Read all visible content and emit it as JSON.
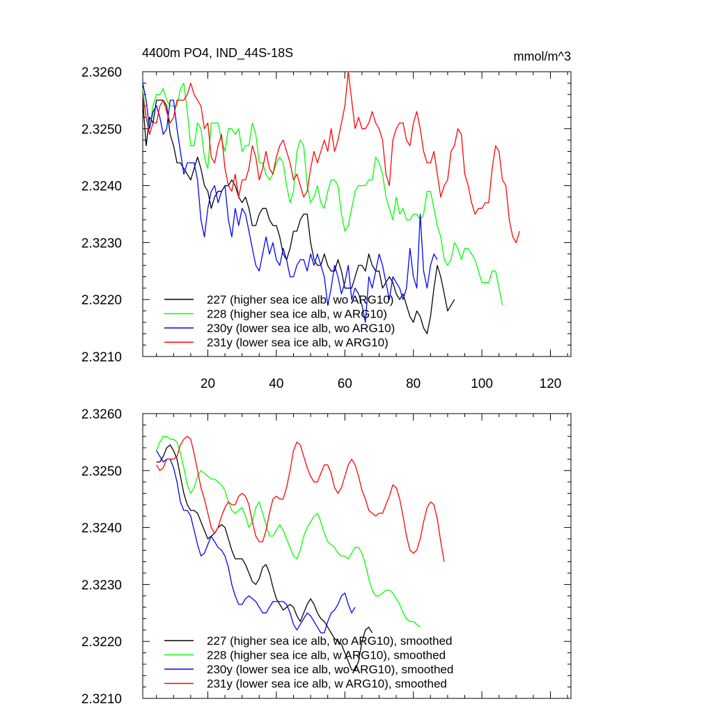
{
  "title_left": "4400m PO4, IND_44S-18S",
  "title_right": "mmol/m^3",
  "chart_data": [
    {
      "type": "line",
      "name": "raw",
      "xlim": [
        1,
        126
      ],
      "ylim": [
        2.321,
        2.326
      ],
      "x_ticks": [
        20,
        40,
        60,
        80,
        100,
        120
      ],
      "y_ticks": [
        "2.3210",
        "2.3220",
        "2.3230",
        "2.3240",
        "2.3250",
        "2.3260"
      ],
      "series": [
        {
          "name": "227 (higher sea ice alb, wo ARG10)",
          "color": "#000000",
          "x_start": 1,
          "values": [
            2.3255,
            2.3247,
            2.3252,
            2.3251,
            2.3255,
            2.3255,
            2.3255,
            2.3254,
            2.3249,
            2.3247,
            2.3244,
            2.3244,
            2.3243,
            2.3242,
            2.3241,
            2.3243,
            2.3245,
            2.3243,
            2.324,
            2.3239,
            2.3236,
            2.3238,
            2.3239,
            2.3239,
            2.324,
            2.324,
            2.3241,
            2.324,
            2.3238,
            2.3237,
            2.3238,
            2.3236,
            2.3233,
            2.3233,
            2.3235,
            2.3236,
            2.3236,
            2.3234,
            2.3233,
            2.3233,
            2.3231,
            2.3228,
            2.3227,
            2.3229,
            2.3232,
            2.3232,
            2.3234,
            2.3235,
            2.3235,
            2.323,
            2.3227,
            2.3226,
            2.3226,
            2.3228,
            2.3226,
            2.3225,
            2.3225,
            2.3227,
            2.3225,
            2.3222,
            2.3222,
            2.3222,
            2.3224,
            2.3226,
            2.3226,
            2.3225,
            2.3228,
            2.3226,
            2.3225,
            2.3225,
            2.3222,
            2.3223,
            2.3224,
            2.3223,
            2.3221,
            2.322,
            2.3221,
            2.3219,
            2.3217,
            2.3216,
            2.3218,
            2.3217,
            2.3215,
            2.3214,
            2.3217,
            2.3222,
            2.3226,
            2.3224,
            2.3221,
            2.3218,
            2.3219,
            2.322
          ]
        },
        {
          "name": "228 (higher sea ice alb, w ARG10)",
          "color": "#00ff00",
          "x_start": 1,
          "values": [
            2.3257,
            2.3252,
            2.325,
            2.3254,
            2.3256,
            2.3256,
            2.3257,
            2.3255,
            2.3254,
            2.3254,
            2.3254,
            2.3257,
            2.3258,
            2.3253,
            2.3247,
            2.3247,
            2.3251,
            2.325,
            2.3245,
            2.3243,
            2.3251,
            2.3251,
            2.3251,
            2.3248,
            2.3246,
            2.325,
            2.325,
            2.3249,
            2.325,
            2.3246,
            2.3247,
            2.3247,
            2.3251,
            2.3249,
            2.3244,
            2.3244,
            2.3242,
            2.3241,
            2.3242,
            2.3244,
            2.3245,
            2.3244,
            2.324,
            2.3237,
            2.3239,
            2.3246,
            2.3248,
            2.3247,
            2.324,
            2.3237,
            2.3238,
            2.324,
            2.3237,
            2.3236,
            2.3239,
            2.3241,
            2.3241,
            2.324,
            2.3235,
            2.3232,
            2.3233,
            2.3236,
            2.3239,
            2.324,
            2.324,
            2.324,
            2.3241,
            2.3241,
            2.3245,
            2.3244,
            2.3242,
            2.3238,
            2.3236,
            2.3234,
            2.3238,
            2.3235,
            2.3236,
            2.3234,
            2.3234,
            2.3235,
            2.3235,
            2.3234,
            2.3235,
            2.3239,
            2.3239,
            2.3236,
            2.3233,
            2.3231,
            2.3227,
            2.3226,
            2.3227,
            2.323,
            2.3229,
            2.3227,
            2.3229,
            2.3229,
            2.3228,
            2.3227,
            2.3225,
            2.3223,
            2.3223,
            2.3223,
            2.3225,
            2.3225,
            2.3222,
            2.3219
          ]
        },
        {
          "name": "230y (lower sea ice alb, wo ARG10)",
          "color": "#0000ff",
          "x_start": 1,
          "values": [
            2.3258,
            2.3255,
            2.325,
            2.3253,
            2.3254,
            2.3252,
            2.3249,
            2.325,
            2.3255,
            2.3255,
            2.325,
            2.3246,
            2.3242,
            2.3244,
            2.3244,
            2.3244,
            2.3241,
            2.3234,
            2.3231,
            2.3236,
            2.3239,
            2.324,
            2.3237,
            2.3239,
            2.324,
            2.3234,
            2.3231,
            2.3236,
            2.3233,
            2.3236,
            2.3235,
            2.3232,
            2.3229,
            2.3226,
            2.3225,
            2.3228,
            2.3231,
            2.3228,
            2.323,
            2.3227,
            2.3226,
            2.3229,
            2.3227,
            2.3224,
            2.3224,
            2.3226,
            2.3227,
            2.3227,
            2.3225,
            2.3228,
            2.3226,
            2.3228,
            2.3226,
            2.3224,
            2.3219,
            2.3222,
            2.3226,
            2.3224,
            2.3221,
            2.3223,
            2.3226,
            2.322,
            2.3222,
            2.3221,
            2.3219,
            2.3216,
            2.3224,
            2.3222,
            2.3225,
            2.3228,
            2.3226,
            2.3223,
            2.322,
            2.3224,
            2.3223,
            2.3222,
            2.322,
            2.3222,
            2.3229,
            2.3224,
            2.3222,
            2.3235,
            2.3225,
            2.3222,
            2.3226,
            2.3228,
            2.3227
          ]
        },
        {
          "name": "231y (lower sea ice alb, w ARG10)",
          "color": "#ff0000",
          "x_start": 1,
          "values": [
            2.3256,
            2.3252,
            2.3249,
            2.3251,
            2.3251,
            2.3254,
            2.3255,
            2.3253,
            2.3251,
            2.3252,
            2.3255,
            2.3255,
            2.3255,
            2.3256,
            2.3258,
            2.3256,
            2.3255,
            2.3254,
            2.325,
            2.3251,
            2.3245,
            2.3244,
            2.3247,
            2.3249,
            2.3243,
            2.324,
            2.3239,
            2.3242,
            2.3238,
            2.3241,
            2.3241,
            2.3243,
            2.3247,
            2.3245,
            2.3241,
            2.3243,
            2.3246,
            2.3243,
            2.3242,
            2.3245,
            2.3247,
            2.3248,
            2.3246,
            2.3244,
            2.3241,
            2.3242,
            2.324,
            2.3238,
            2.3239,
            2.3243,
            2.3246,
            2.3244,
            2.3246,
            2.3248,
            2.3246,
            2.325,
            2.3246,
            2.3248,
            2.3251,
            2.3254,
            2.326,
            2.3255,
            2.325,
            2.3252,
            2.325,
            2.325,
            2.3251,
            2.3253,
            2.3251,
            2.325,
            2.3248,
            2.3242,
            2.324,
            2.3248,
            2.325,
            2.3251,
            2.3251,
            2.3248,
            2.3247,
            2.3251,
            2.3253,
            2.325,
            2.3246,
            2.3244,
            2.3244,
            2.3246,
            2.3242,
            2.3238,
            2.324,
            2.3241,
            2.3246,
            2.3247,
            2.325,
            2.3249,
            2.3242,
            2.324,
            2.3237,
            2.3235,
            2.3236,
            2.3236,
            2.3237,
            2.3237,
            2.3243,
            2.3247,
            2.3246,
            2.3241,
            2.324,
            2.3234,
            2.3231,
            2.323,
            2.3232
          ]
        }
      ]
    },
    {
      "type": "line",
      "name": "smoothed",
      "xlim": [
        1,
        126
      ],
      "ylim": [
        2.321,
        2.326
      ],
      "x_ticks": [
        20,
        40,
        60,
        80,
        100,
        120
      ],
      "x_tick_labels": false,
      "y_ticks": [
        "2.3210",
        "2.3220",
        "2.3230",
        "2.3240",
        "2.3250",
        "2.3260"
      ],
      "series": [
        {
          "name": "227 (higher sea ice alb, wo ARG10), smoothed",
          "color": "#000000",
          "x_start": 5,
          "values": [
            2.32515,
            2.32515,
            2.32525,
            2.3254,
            2.32545,
            2.32535,
            2.3252,
            2.3249,
            2.3246,
            2.3244,
            2.3243,
            2.3243,
            2.32425,
            2.3241,
            2.32395,
            2.3238,
            2.32385,
            2.3239,
            2.324,
            2.32405,
            2.324,
            2.3238,
            2.3236,
            2.32345,
            2.32345,
            2.32345,
            2.32335,
            2.3232,
            2.32305,
            2.323,
            2.3231,
            2.3233,
            2.32335,
            2.3232,
            2.32295,
            2.32275,
            2.32265,
            2.32255,
            2.3226,
            2.32265,
            2.3226,
            2.32245,
            2.32235,
            2.3225,
            2.32265,
            2.32275,
            2.32265,
            2.3225,
            2.3224,
            2.32235,
            2.32225,
            2.32215,
            2.32205,
            2.322,
            2.32195,
            2.3218,
            2.32165,
            2.3215,
            2.3215,
            2.32165,
            2.322,
            2.3222,
            2.32225,
            2.32215
          ]
        },
        {
          "name": "228 (higher sea ice alb, w ARG10), smoothed",
          "color": "#00ff00",
          "x_start": 5,
          "values": [
            2.32535,
            2.3255,
            2.3256,
            2.3256,
            2.32555,
            2.32555,
            2.3255,
            2.3253,
            2.32505,
            2.32475,
            2.3246,
            2.3247,
            2.3249,
            2.325,
            2.32495,
            2.3249,
            2.32485,
            2.32485,
            2.3248,
            2.32475,
            2.32465,
            2.32445,
            2.3243,
            2.32425,
            2.3243,
            2.32435,
            2.3242,
            2.324,
            2.3241,
            2.32435,
            2.32445,
            2.32425,
            2.32405,
            2.32385,
            2.32385,
            2.32395,
            2.32405,
            2.32395,
            2.3238,
            2.32365,
            2.3235,
            2.32345,
            2.3236,
            2.32385,
            2.324,
            2.3241,
            2.3242,
            2.32425,
            2.3241,
            2.3239,
            2.32375,
            2.3237,
            2.32365,
            2.32355,
            2.3235,
            2.3235,
            2.32345,
            2.32355,
            2.32365,
            2.32365,
            2.32355,
            2.32335,
            2.3231,
            2.3229,
            2.3228,
            2.3228,
            2.32285,
            2.3229,
            2.3229,
            2.32285,
            2.32275,
            2.32265,
            2.3225,
            2.3224,
            2.32235,
            2.32235,
            2.3223,
            2.32225
          ]
        },
        {
          "name": "230y (lower sea ice alb, wo ARG10), smoothed",
          "color": "#0000ff",
          "x_start": 5,
          "values": [
            2.32535,
            2.32525,
            2.32515,
            2.3252,
            2.3252,
            2.32505,
            2.3248,
            2.32445,
            2.3243,
            2.3243,
            2.3242,
            2.32395,
            2.3237,
            2.3235,
            2.32355,
            2.3237,
            2.32385,
            2.32375,
            2.32365,
            2.3236,
            2.3235,
            2.3233,
            2.323,
            2.3228,
            2.32265,
            2.32265,
            2.32275,
            2.3228,
            2.32275,
            2.3227,
            2.3226,
            2.3225,
            2.3225,
            2.3226,
            2.3227,
            2.3227,
            2.3227,
            2.3227,
            2.32265,
            2.3225,
            2.3223,
            2.3222,
            2.3223,
            2.3224,
            2.3225,
            2.32245,
            2.32235,
            2.32225,
            2.32215,
            2.32215,
            2.32235,
            2.3225,
            2.32255,
            2.32265,
            2.3228,
            2.32285,
            2.32265,
            2.3225,
            2.3226
          ]
        },
        {
          "name": "231y (lower sea ice alb, w ARG10), smoothed",
          "color": "#ff0000",
          "x_start": 5,
          "values": [
            2.3251,
            2.325,
            2.32505,
            2.3252,
            2.3252,
            2.3252,
            2.32525,
            2.32545,
            2.32555,
            2.3256,
            2.32555,
            2.3253,
            2.325,
            2.3247,
            2.3245,
            2.32425,
            2.324,
            2.3239,
            2.324,
            2.3242,
            2.32435,
            2.32445,
            2.3244,
            2.3244,
            2.32455,
            2.3246,
            2.32455,
            2.3244,
            2.3241,
            2.32385,
            2.32375,
            2.32375,
            2.32395,
            2.32425,
            2.3245,
            2.32455,
            2.3245,
            2.3245,
            2.3247,
            2.325,
            2.32535,
            2.3255,
            2.32545,
            2.32525,
            2.32505,
            2.3249,
            2.3248,
            2.3248,
            2.32495,
            2.3251,
            2.3251,
            2.32495,
            2.3247,
            2.3246,
            2.3247,
            2.3249,
            2.3251,
            2.3252,
            2.3251,
            2.3249,
            2.32465,
            2.3245,
            2.3243,
            2.32425,
            2.3242,
            2.32425,
            2.32425,
            2.3244,
            2.32455,
            2.32475,
            2.3247,
            2.3245,
            2.3242,
            2.32385,
            2.3236,
            2.32355,
            2.3236,
            2.3238,
            2.3241,
            2.32435,
            2.32445,
            2.3244,
            2.32415,
            2.32375,
            2.3234
          ]
        }
      ]
    }
  ]
}
